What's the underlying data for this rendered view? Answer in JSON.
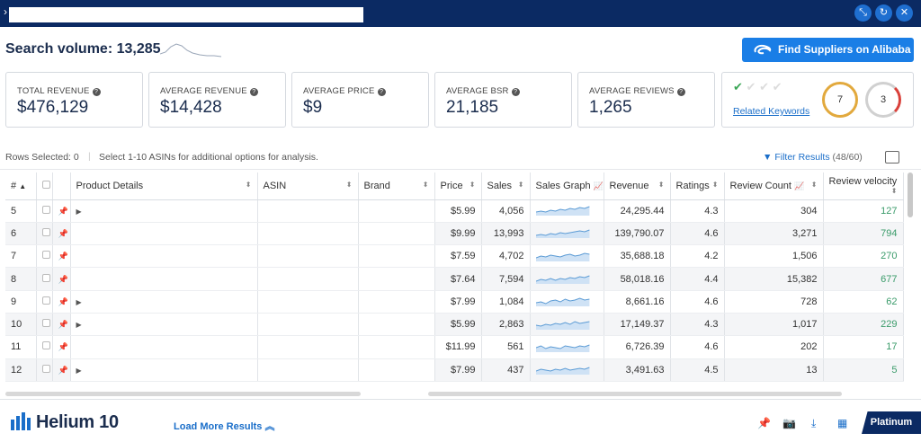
{
  "window": {
    "controls": [
      "minimize-icon",
      "refresh-icon",
      "close-icon"
    ]
  },
  "search_volume": {
    "label": "Search volume:",
    "value": "13,285"
  },
  "alibaba_button": {
    "label": "Find Suppliers on Alibaba",
    "color": "#1a7ee6"
  },
  "metrics": [
    {
      "label": "TOTAL REVENUE",
      "value": "$476,129"
    },
    {
      "label": "AVERAGE REVENUE",
      "value": "$14,428"
    },
    {
      "label": "AVERAGE PRICE",
      "value": "$9"
    },
    {
      "label": "AVERAGE BSR",
      "value": "21,185"
    },
    {
      "label": "AVERAGE REVIEWS",
      "value": "1,265"
    }
  ],
  "keywords": {
    "link": "Related Keywords",
    "score_a": "7",
    "score_b": "3"
  },
  "rows_selected": {
    "label": "Rows Selected: 0",
    "hint": "Select 1-10 ASINs for additional options for analysis."
  },
  "filter": {
    "label": "Filter Results",
    "count": "(48/60)"
  },
  "table": {
    "headers": {
      "num": "#",
      "details": "Product Details",
      "asin": "ASIN",
      "brand": "Brand",
      "price": "Price",
      "sales": "Sales",
      "sales_graph": "Sales Graph",
      "revenue": "Revenue",
      "ratings": "Ratings",
      "review_count": "Review Count",
      "review_velocity": "Review velocity"
    },
    "rows": [
      {
        "n": "5",
        "price": "$5.99",
        "sales": "4,056",
        "revenue": "24,295.44",
        "rating": "4.3",
        "reviews": "304",
        "velocity": "127"
      },
      {
        "n": "6",
        "price": "$9.99",
        "sales": "13,993",
        "revenue": "139,790.07",
        "rating": "4.6",
        "reviews": "3,271",
        "velocity": "794"
      },
      {
        "n": "7",
        "price": "$7.59",
        "sales": "4,702",
        "revenue": "35,688.18",
        "rating": "4.2",
        "reviews": "1,506",
        "velocity": "270"
      },
      {
        "n": "8",
        "price": "$7.64",
        "sales": "7,594",
        "revenue": "58,018.16",
        "rating": "4.4",
        "reviews": "15,382",
        "velocity": "677"
      },
      {
        "n": "9",
        "price": "$7.99",
        "sales": "1,084",
        "revenue": "8,661.16",
        "rating": "4.6",
        "reviews": "728",
        "velocity": "62"
      },
      {
        "n": "10",
        "price": "$5.99",
        "sales": "2,863",
        "revenue": "17,149.37",
        "rating": "4.3",
        "reviews": "1,017",
        "velocity": "229"
      },
      {
        "n": "11",
        "price": "$11.99",
        "sales": "561",
        "revenue": "6,726.39",
        "rating": "4.6",
        "reviews": "202",
        "velocity": "17"
      },
      {
        "n": "12",
        "price": "$7.99",
        "sales": "437",
        "revenue": "3,491.63",
        "rating": "4.5",
        "reviews": "13",
        "velocity": "5"
      }
    ]
  },
  "footer": {
    "brand": "Helium 10",
    "load_more": "Load More Results",
    "plan": "Platinum"
  }
}
